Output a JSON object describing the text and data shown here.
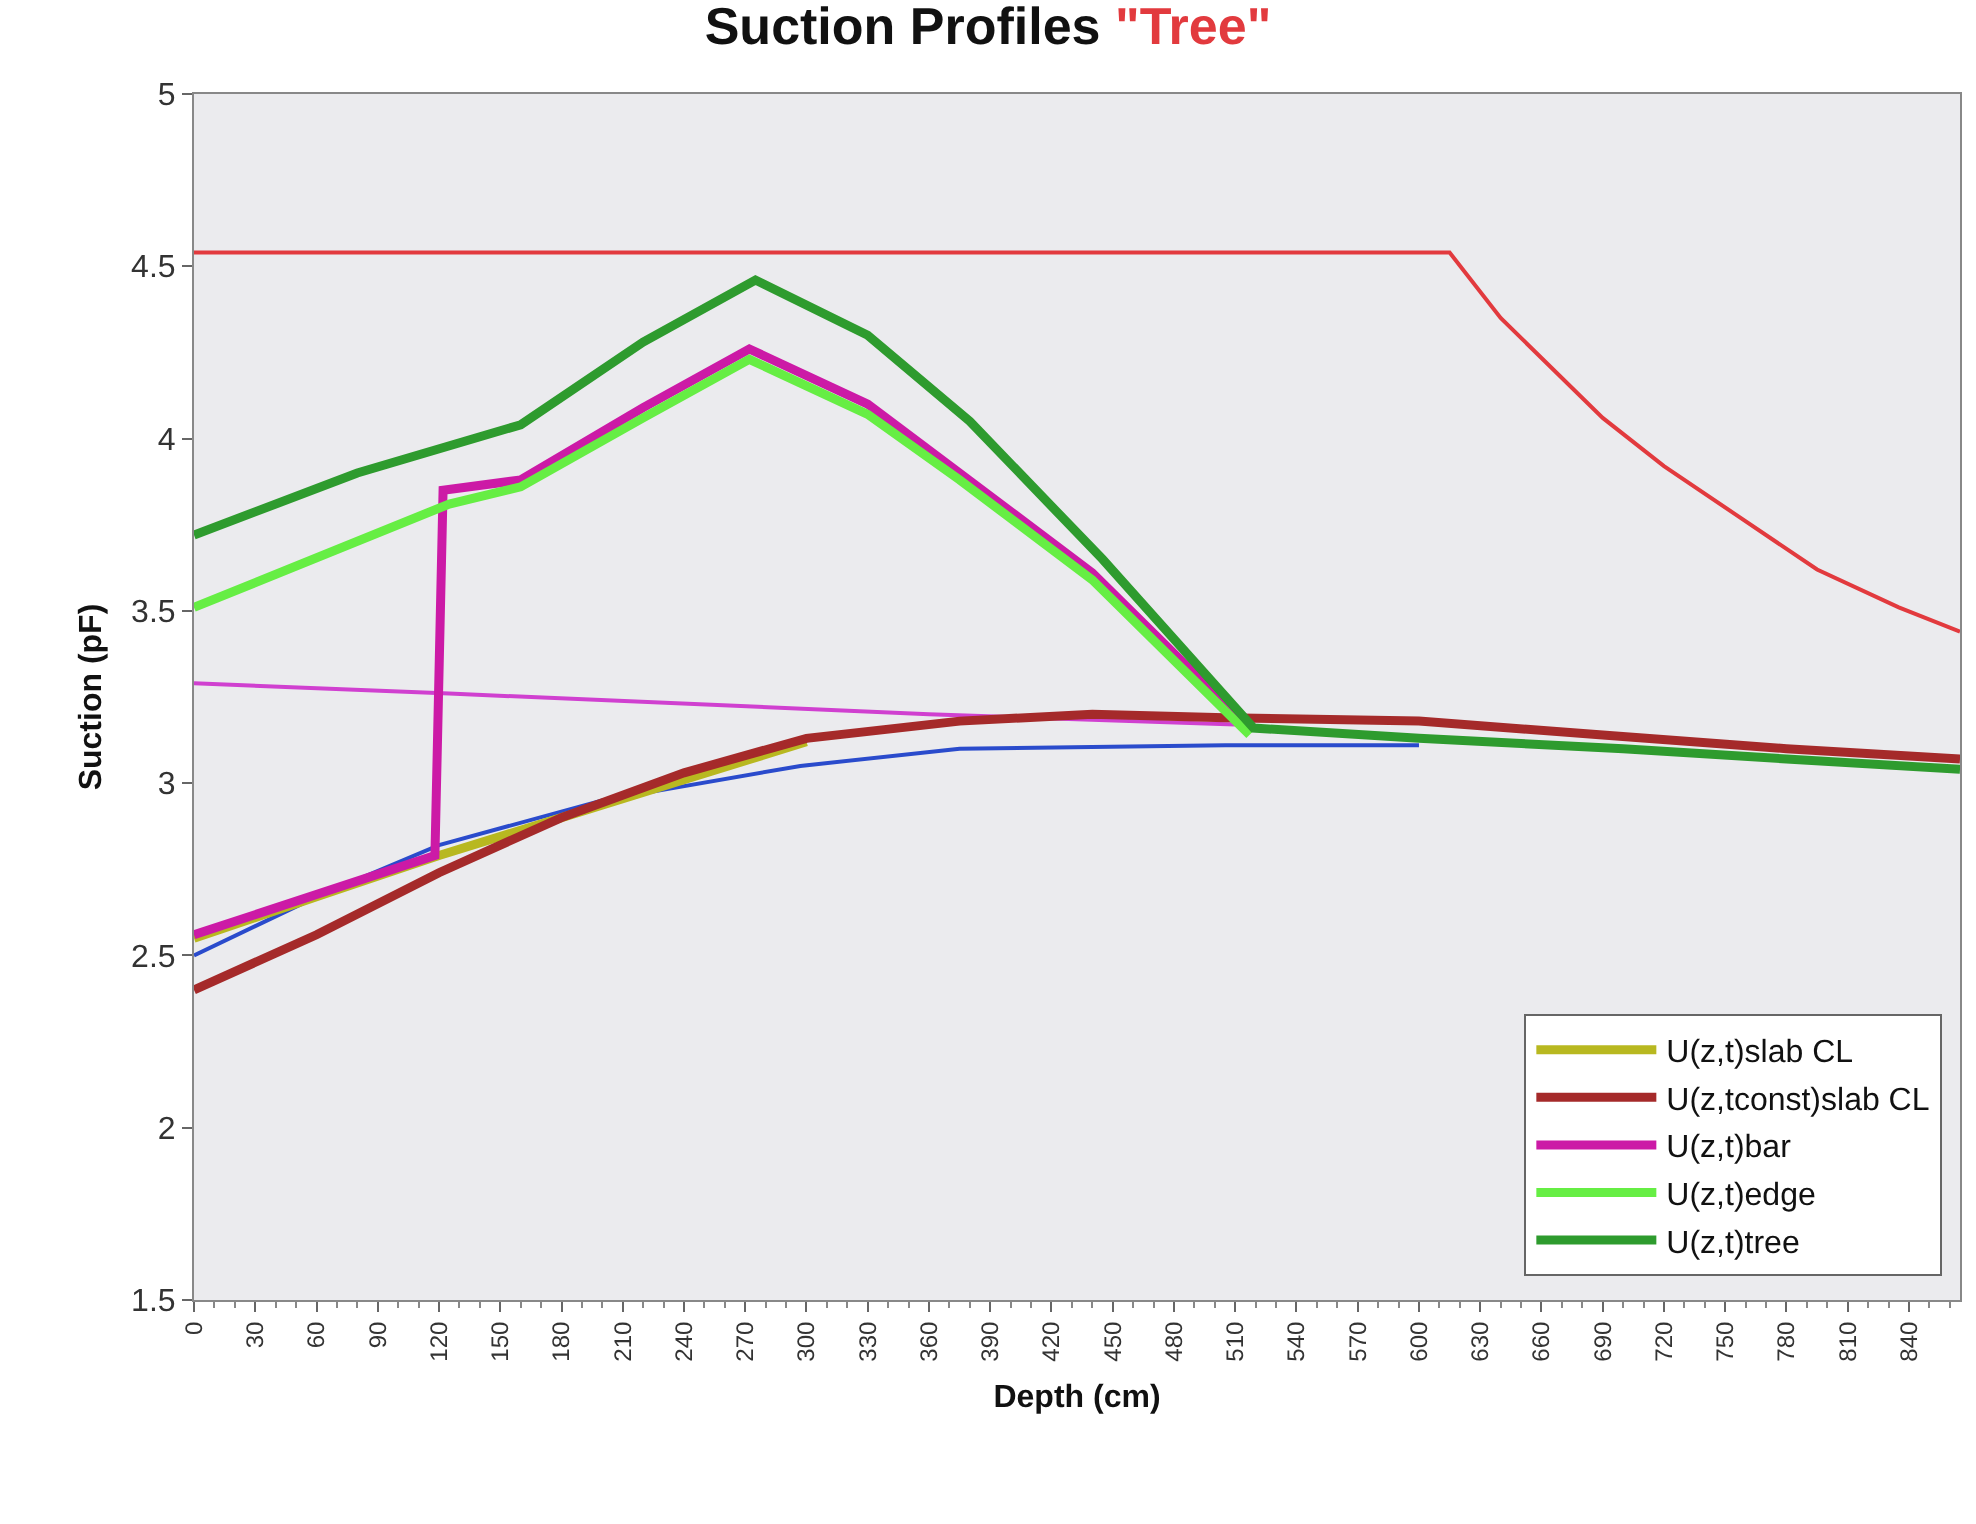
{
  "chart_data": {
    "type": "line",
    "title": "Suction Profiles",
    "subtitle": "\"Tree\"",
    "xlabel": "Depth (cm)",
    "ylabel": "Suction (pF)",
    "series": [
      {
        "color": "#e23a3e",
        "x": [
          0,
          615,
          640,
          690,
          720,
          755,
          795,
          835,
          865
        ],
        "values": [
          4.54,
          4.54,
          4.35,
          4.06,
          3.92,
          3.78,
          3.62,
          3.51,
          3.44
        ]
      },
      {
        "color": "#2a4bcc",
        "x": [
          0,
          60,
          120,
          200,
          297,
          375,
          505,
          600
        ],
        "values": [
          2.5,
          2.67,
          2.82,
          2.95,
          3.05,
          3.1,
          3.11,
          3.11
        ]
      },
      {
        "color": "#d040d0",
        "x": [
          0,
          125,
          360,
          510
        ],
        "values": [
          3.29,
          3.26,
          3.2,
          3.17
        ]
      },
      {
        "name": "U(z,t)slab CL",
        "color": "#b8b820",
        "x": [
          0,
          60,
          120,
          180,
          240,
          300
        ],
        "values": [
          2.55,
          2.67,
          2.79,
          2.9,
          3.01,
          3.12
        ]
      },
      {
        "name": "U(z,tconst)slab CL",
        "color": "#a52a2a",
        "x": [
          0,
          60,
          120,
          180,
          240,
          300,
          375,
          440,
          505,
          600,
          690,
          780,
          865
        ],
        "values": [
          2.4,
          2.56,
          2.74,
          2.9,
          3.03,
          3.13,
          3.18,
          3.2,
          3.19,
          3.18,
          3.14,
          3.1,
          3.07
        ]
      },
      {
        "name": "U(z,t)bar",
        "color": "#cc1aa6",
        "x": [
          0,
          118,
          122,
          160,
          220,
          272,
          330,
          375,
          440,
          517
        ],
        "values": [
          2.56,
          2.79,
          3.85,
          3.88,
          4.09,
          4.26,
          4.1,
          3.9,
          3.61,
          3.16
        ]
      },
      {
        "name": "U(z,t)edge",
        "color": "#66ee44",
        "x": [
          0,
          125,
          160,
          220,
          272,
          330,
          375,
          440,
          517
        ],
        "values": [
          3.51,
          3.81,
          3.86,
          4.06,
          4.23,
          4.07,
          3.88,
          3.59,
          3.14
        ]
      },
      {
        "name": "U(z,t)tree",
        "color": "#2e9b2e",
        "x": [
          0,
          80,
          160,
          220,
          275,
          330,
          380,
          445,
          519,
          600,
          700,
          780,
          865
        ],
        "values": [
          3.72,
          3.9,
          4.04,
          4.28,
          4.46,
          4.3,
          4.05,
          3.65,
          3.16,
          3.13,
          3.1,
          3.07,
          3.04
        ]
      }
    ],
    "xlim": [
      0,
      865
    ],
    "xticks": [
      0,
      30,
      60,
      90,
      120,
      150,
      180,
      210,
      240,
      270,
      300,
      330,
      360,
      390,
      420,
      450,
      480,
      510,
      540,
      570,
      600,
      630,
      660,
      690,
      720,
      750,
      780,
      810,
      840
    ],
    "ylim": [
      1.5,
      5
    ],
    "yticks": [
      1.5,
      2,
      2.5,
      3,
      3.5,
      4,
      4.5,
      5
    ],
    "legend": "bottom right",
    "grid": false,
    "marker": "none",
    "line_style": "solid"
  }
}
